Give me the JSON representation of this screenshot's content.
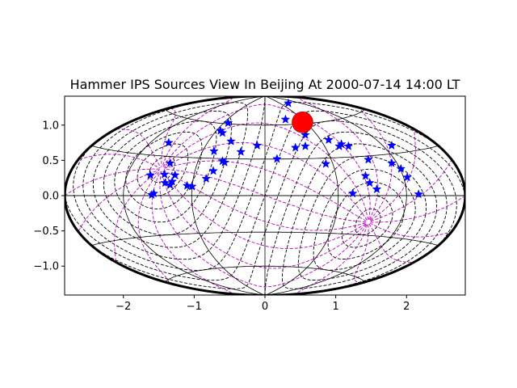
{
  "chart_data": {
    "type": "scatter",
    "projection": "hammer",
    "title": "Hammer IPS Sources View In Beijing At 2000-07-14 14:00 LT",
    "xlabel": "",
    "ylabel": "",
    "xlim": [
      -2.83,
      2.83
    ],
    "ylim": [
      -1.41,
      1.41
    ],
    "x_ticks": [
      -2,
      -1,
      0,
      1,
      2
    ],
    "y_ticks": [
      -1.0,
      -0.5,
      0.0,
      0.5,
      1.0
    ],
    "x_tick_labels": [
      "−2",
      "−1",
      "0",
      "1",
      "2"
    ],
    "y_tick_labels": [
      "−1.0",
      "−0.5",
      "0.0",
      "0.5",
      "1.0"
    ],
    "grid": true,
    "colors": {
      "sources": "#0000ff",
      "sun": "#ff0000",
      "grid": "#000000",
      "sky_grid_a": "#000000",
      "sky_grid_b": "#bf00bf"
    },
    "sun": {
      "x": 0.53,
      "y": 1.04
    },
    "sources": [
      {
        "x": 0.33,
        "y": 1.31
      },
      {
        "x": 0.29,
        "y": 1.08
      },
      {
        "x": -0.52,
        "y": 1.03
      },
      {
        "x": -0.63,
        "y": 0.92
      },
      {
        "x": -0.6,
        "y": 0.89
      },
      {
        "x": -0.48,
        "y": 0.77
      },
      {
        "x": -1.36,
        "y": 0.75
      },
      {
        "x": -0.11,
        "y": 0.71
      },
      {
        "x": -0.34,
        "y": 0.62
      },
      {
        "x": -0.72,
        "y": 0.63
      },
      {
        "x": 0.43,
        "y": 0.68
      },
      {
        "x": 0.57,
        "y": 0.7
      },
      {
        "x": 0.57,
        "y": 0.86
      },
      {
        "x": 0.9,
        "y": 0.79
      },
      {
        "x": 1.05,
        "y": 0.7
      },
      {
        "x": 1.08,
        "y": 0.73
      },
      {
        "x": 1.18,
        "y": 0.7
      },
      {
        "x": 1.79,
        "y": 0.71
      },
      {
        "x": 0.17,
        "y": 0.52
      },
      {
        "x": -0.6,
        "y": 0.49
      },
      {
        "x": -0.57,
        "y": 0.47
      },
      {
        "x": -1.34,
        "y": 0.46
      },
      {
        "x": 0.86,
        "y": 0.45
      },
      {
        "x": 1.46,
        "y": 0.51
      },
      {
        "x": 1.79,
        "y": 0.46
      },
      {
        "x": 1.92,
        "y": 0.38
      },
      {
        "x": -0.73,
        "y": 0.35
      },
      {
        "x": -0.83,
        "y": 0.24
      },
      {
        "x": -1.62,
        "y": 0.29
      },
      {
        "x": -1.42,
        "y": 0.3
      },
      {
        "x": -1.27,
        "y": 0.29
      },
      {
        "x": -1.41,
        "y": 0.18
      },
      {
        "x": -1.34,
        "y": 0.15
      },
      {
        "x": -1.31,
        "y": 0.2
      },
      {
        "x": -1.1,
        "y": 0.14
      },
      {
        "x": -1.03,
        "y": 0.13
      },
      {
        "x": 1.42,
        "y": 0.28
      },
      {
        "x": 1.48,
        "y": 0.18
      },
      {
        "x": 2.01,
        "y": 0.26
      },
      {
        "x": 1.58,
        "y": 0.09
      },
      {
        "x": -1.57,
        "y": 0.03
      },
      {
        "x": -1.6,
        "y": 0.01
      },
      {
        "x": 1.24,
        "y": 0.03
      },
      {
        "x": 2.17,
        "y": 0.02
      }
    ]
  }
}
